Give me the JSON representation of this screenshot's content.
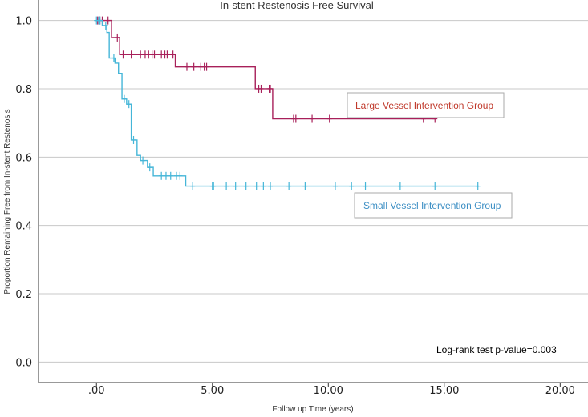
{
  "chart_data": {
    "type": "line",
    "title": "In-stent Restenosis Free Survival",
    "xlabel": "Follow up Time (years)",
    "ylabel": "Proportion Remaining Free from In-stent Restenosis",
    "xlim": [
      -2.5,
      21.2
    ],
    "ylim": [
      -0.06,
      1.06
    ],
    "xticks": [
      0,
      5,
      10,
      15,
      20
    ],
    "xtick_labels": [
      ".00",
      "5.00",
      "10.00",
      "15.00",
      "20.00"
    ],
    "yticks": [
      0.0,
      0.2,
      0.4,
      0.6,
      0.8,
      1.0
    ],
    "ytick_labels": [
      "0.0",
      "0.2",
      "0.4",
      "0.6",
      "0.8",
      "1.0"
    ],
    "grid": true,
    "annotation": "Log-rank test p-value=0.003",
    "series": [
      {
        "name": "Large Vessel Intervention Group",
        "color": "#a8205a",
        "legend_color": "#c0392b",
        "steps": [
          [
            0,
            1.0
          ],
          [
            0.65,
            0.95
          ],
          [
            1.0,
            0.9
          ],
          [
            3.4,
            0.864
          ],
          [
            6.85,
            0.8
          ],
          [
            7.6,
            0.712
          ]
        ],
        "end_x": 14.6,
        "censor_x": [
          0.05,
          0.15,
          0.25,
          0.5,
          0.9,
          1.15,
          1.5,
          1.9,
          2.1,
          2.25,
          2.4,
          2.5,
          2.8,
          2.95,
          3.05,
          3.3,
          3.9,
          4.2,
          4.5,
          4.65,
          4.75,
          7.0,
          7.1,
          7.45,
          7.5,
          8.5,
          8.6,
          9.3,
          10.05,
          14.1,
          14.6
        ]
      },
      {
        "name": "Small Vessel Intervention Group",
        "color": "#45b6d8",
        "legend_color": "#3d8fc4",
        "steps": [
          [
            0,
            1.0
          ],
          [
            0.25,
            0.985
          ],
          [
            0.45,
            0.965
          ],
          [
            0.55,
            0.89
          ],
          [
            0.8,
            0.875
          ],
          [
            0.95,
            0.845
          ],
          [
            1.1,
            0.77
          ],
          [
            1.3,
            0.755
          ],
          [
            1.5,
            0.65
          ],
          [
            1.75,
            0.605
          ],
          [
            1.9,
            0.59
          ],
          [
            2.2,
            0.57
          ],
          [
            2.45,
            0.545
          ],
          [
            3.85,
            0.515
          ]
        ],
        "end_x": 16.5,
        "censor_x": [
          0.0,
          0.1,
          0.15,
          0.4,
          0.75,
          1.2,
          1.4,
          1.6,
          2.0,
          2.3,
          2.8,
          3.0,
          3.2,
          3.45,
          3.6,
          4.15,
          5.0,
          5.05,
          5.6,
          6.0,
          6.45,
          6.9,
          7.2,
          7.5,
          8.3,
          9.0,
          10.3,
          11.0,
          11.6,
          13.1,
          14.6,
          16.45
        ]
      }
    ]
  }
}
